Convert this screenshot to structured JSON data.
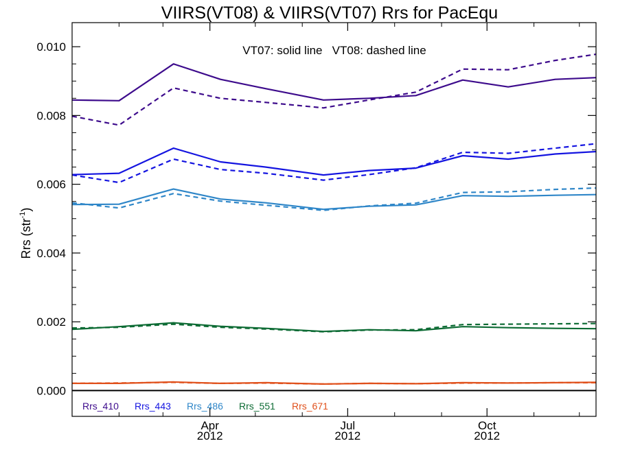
{
  "chart_data": {
    "type": "line",
    "title": "VIIRS(VT08) & VIIRS(VT07)  Rrs for PacEqu",
    "ylabel": "Rrs (str",
    "ylabel_sup": "-1",
    "annotation": "VT07: solid line   VT08: dashed line",
    "ylim": [
      -0.00075,
      0.0107
    ],
    "xlim": [
      "2012-01-01",
      "2012-12-12"
    ],
    "grid": false,
    "legend_placement": "bottom-left",
    "yticks": [
      {
        "value": 0.0,
        "label": "0.000"
      },
      {
        "value": 0.002,
        "label": "0.002"
      },
      {
        "value": 0.004,
        "label": "0.004"
      },
      {
        "value": 0.006,
        "label": "0.006"
      },
      {
        "value": 0.008,
        "label": "0.008"
      },
      {
        "value": 0.01,
        "label": "0.010"
      }
    ],
    "xticks": [
      {
        "date": "2012-04-01",
        "label": "Apr",
        "year": "2012"
      },
      {
        "date": "2012-07-01",
        "label": "Jul",
        "year": "2012"
      },
      {
        "date": "2012-10-01",
        "label": "Oct",
        "year": "2012"
      }
    ],
    "x": [
      "2012-01-01",
      "2012-02-01",
      "2012-03-08",
      "2012-04-08",
      "2012-05-08",
      "2012-06-15",
      "2012-07-15",
      "2012-08-15",
      "2012-09-15",
      "2012-10-15",
      "2012-11-15",
      "2012-12-12"
    ],
    "series": [
      {
        "name": "Rrs_410",
        "color": "#3d0b8c",
        "style": "solid",
        "values": [
          0.00845,
          0.00843,
          0.0095,
          0.00905,
          0.00878,
          0.00845,
          0.0085,
          0.00858,
          0.00903,
          0.00883,
          0.00905,
          0.0091
        ]
      },
      {
        "name": "Rrs_410",
        "color": "#3d0b8c",
        "style": "dashed",
        "values": [
          0.00798,
          0.00772,
          0.0088,
          0.0085,
          0.00838,
          0.00822,
          0.00845,
          0.00868,
          0.00935,
          0.00933,
          0.0096,
          0.00978
        ]
      },
      {
        "name": "Rrs_443",
        "color": "#1414e0",
        "style": "solid",
        "values": [
          0.00628,
          0.00632,
          0.00705,
          0.00665,
          0.0065,
          0.00627,
          0.0064,
          0.00647,
          0.00683,
          0.00673,
          0.00688,
          0.00695
        ]
      },
      {
        "name": "Rrs_443",
        "color": "#1414e0",
        "style": "dashed",
        "values": [
          0.00627,
          0.00605,
          0.00673,
          0.00643,
          0.00632,
          0.00612,
          0.00628,
          0.00648,
          0.00693,
          0.0069,
          0.00705,
          0.00718
        ]
      },
      {
        "name": "Rrs_486",
        "color": "#2e86c8",
        "style": "solid",
        "values": [
          0.00541,
          0.00542,
          0.00586,
          0.00557,
          0.00546,
          0.00527,
          0.00536,
          0.0054,
          0.00567,
          0.00565,
          0.00568,
          0.0057
        ]
      },
      {
        "name": "Rrs_486",
        "color": "#2e86c8",
        "style": "dashed",
        "values": [
          0.00546,
          0.00531,
          0.00573,
          0.00551,
          0.00539,
          0.00524,
          0.00537,
          0.00545,
          0.00576,
          0.00578,
          0.00585,
          0.00589
        ]
      },
      {
        "name": "Rrs_551",
        "color": "#0d6b34",
        "style": "solid",
        "values": [
          0.00178,
          0.00186,
          0.00197,
          0.00187,
          0.00181,
          0.00172,
          0.00177,
          0.00174,
          0.00186,
          0.00183,
          0.00181,
          0.0018
        ]
      },
      {
        "name": "Rrs_551",
        "color": "#0d6b34",
        "style": "dashed",
        "values": [
          0.00182,
          0.00184,
          0.00193,
          0.00184,
          0.00179,
          0.00171,
          0.00176,
          0.00177,
          0.00192,
          0.00193,
          0.00194,
          0.00195
        ]
      },
      {
        "name": "Rrs_671",
        "color": "#e0501b",
        "style": "solid",
        "values": [
          0.00021,
          0.00021,
          0.00025,
          0.00021,
          0.00023,
          0.00019,
          0.00021,
          0.0002,
          0.00023,
          0.00022,
          0.00023,
          0.00024
        ]
      },
      {
        "name": "Rrs_671",
        "color": "#e0501b",
        "style": "dashed",
        "values": [
          0.00021,
          0.00022,
          0.00024,
          0.00021,
          0.00022,
          0.00019,
          0.00021,
          0.0002,
          0.00022,
          0.00022,
          0.00023,
          0.00023
        ]
      }
    ],
    "legend": [
      {
        "label": "Rrs_410",
        "color": "#3d0b8c"
      },
      {
        "label": "Rrs_443",
        "color": "#1414e0"
      },
      {
        "label": "Rrs_486",
        "color": "#2e86c8"
      },
      {
        "label": "Rrs_551",
        "color": "#0d6b34"
      },
      {
        "label": "Rrs_671",
        "color": "#e0501b"
      }
    ]
  }
}
